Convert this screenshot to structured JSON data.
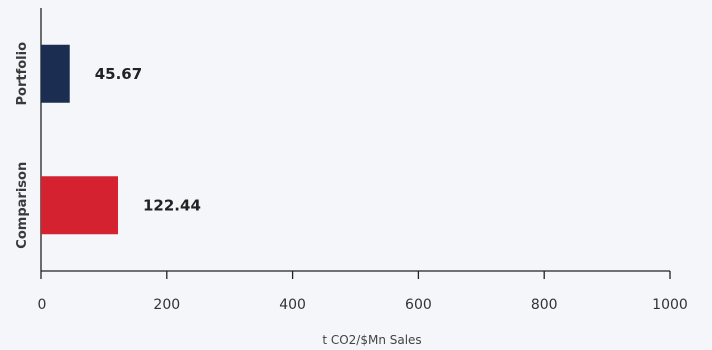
{
  "chart_data": {
    "type": "bar",
    "orientation": "horizontal",
    "categories": [
      "Portfolio",
      "Comparison"
    ],
    "values": [
      45.67,
      122.44
    ],
    "data_labels": [
      "45.67",
      "122.44"
    ],
    "colors": [
      "#1b2e52",
      "#d42231"
    ],
    "xlabel": "t CO2/$Mn Sales",
    "ylabel": "",
    "xlim": [
      0,
      1000
    ],
    "xticks": [
      "0",
      "200",
      "400",
      "600",
      "800",
      "1000"
    ],
    "grid": false,
    "legend": "none"
  }
}
